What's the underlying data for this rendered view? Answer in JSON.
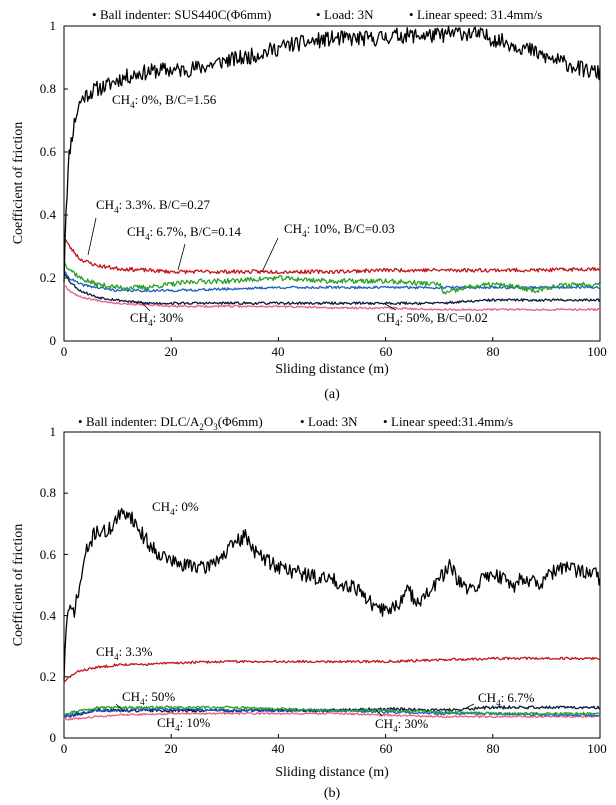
{
  "chart_data": [
    {
      "type": "line",
      "panel_label": "(a)",
      "header_items": [
        {
          "text": "Ball indenter: SUS440C(Φ6mm)"
        },
        {
          "text": "Load: 3N"
        },
        {
          "text": "Linear speed: 31.4mm/s"
        }
      ],
      "xlabel": "Sliding distance (m)",
      "ylabel": "Coefficient of friction",
      "xlim": [
        0,
        100
      ],
      "ylim": [
        0,
        1
      ],
      "x_ticks": [
        "0",
        "20",
        "40",
        "60",
        "80",
        "100"
      ],
      "y_ticks": [
        "0",
        "0.2",
        "0.4",
        "0.6",
        "0.8",
        "1"
      ],
      "series": [
        {
          "name": "CH4: 0%, B/C=1.56",
          "color": "#000000",
          "noise": 0.025,
          "seed": 11,
          "x": [
            0,
            0.3,
            1,
            2,
            3,
            4,
            6,
            8,
            10,
            14,
            18,
            22,
            26,
            30,
            34,
            38,
            42,
            46,
            50,
            54,
            58,
            62,
            66,
            70,
            74,
            78,
            82,
            86,
            90,
            94,
            97,
            100
          ],
          "y": [
            0.2,
            0.4,
            0.6,
            0.7,
            0.76,
            0.78,
            0.8,
            0.81,
            0.83,
            0.85,
            0.86,
            0.86,
            0.87,
            0.89,
            0.9,
            0.92,
            0.94,
            0.95,
            0.96,
            0.96,
            0.96,
            0.97,
            0.97,
            0.97,
            0.98,
            0.97,
            0.95,
            0.93,
            0.9,
            0.88,
            0.86,
            0.85
          ]
        },
        {
          "name": "CH4: 3.3%, B/C=0.27",
          "color": "#c0161c",
          "noise": 0.006,
          "seed": 23,
          "x": [
            0,
            1,
            3,
            6,
            10,
            15,
            20,
            30,
            40,
            50,
            60,
            70,
            80,
            90,
            100
          ],
          "y": [
            0.33,
            0.3,
            0.26,
            0.24,
            0.23,
            0.225,
            0.22,
            0.22,
            0.22,
            0.22,
            0.225,
            0.225,
            0.225,
            0.225,
            0.23
          ]
        },
        {
          "name": "CH4: 6.7%, B/C=0.14",
          "color": "#2ca02c",
          "noise": 0.008,
          "seed": 37,
          "x": [
            0,
            1,
            3,
            6,
            10,
            15,
            20,
            25,
            30,
            40,
            50,
            60,
            70,
            71,
            75,
            80,
            85,
            88,
            90,
            95,
            100
          ],
          "y": [
            0.25,
            0.23,
            0.2,
            0.18,
            0.17,
            0.17,
            0.18,
            0.19,
            0.19,
            0.2,
            0.19,
            0.19,
            0.18,
            0.15,
            0.17,
            0.18,
            0.17,
            0.16,
            0.17,
            0.18,
            0.18
          ]
        },
        {
          "name": "CH4: 10%, B/C=0.03",
          "color": "#1f5fc0",
          "noise": 0.004,
          "seed": 41,
          "x": [
            0,
            1,
            3,
            6,
            10,
            20,
            30,
            40,
            50,
            60,
            70,
            80,
            90,
            100
          ],
          "y": [
            0.22,
            0.2,
            0.18,
            0.17,
            0.16,
            0.16,
            0.165,
            0.17,
            0.17,
            0.17,
            0.17,
            0.17,
            0.17,
            0.17
          ]
        },
        {
          "name": "CH4: 30%",
          "color": "#0b1a3a",
          "noise": 0.004,
          "seed": 53,
          "x": [
            0,
            1,
            3,
            6,
            10,
            15,
            20,
            30,
            40,
            50,
            60,
            70,
            80,
            90,
            100
          ],
          "y": [
            0.22,
            0.19,
            0.16,
            0.14,
            0.13,
            0.12,
            0.12,
            0.12,
            0.12,
            0.12,
            0.12,
            0.12,
            0.13,
            0.13,
            0.13
          ]
        },
        {
          "name": "CH4: 50%, B/C=0.02",
          "color": "#e8608a",
          "noise": 0.003,
          "seed": 67,
          "x": [
            0,
            1,
            3,
            6,
            10,
            15,
            20,
            30,
            40,
            50,
            60,
            70,
            80,
            90,
            100
          ],
          "y": [
            0.18,
            0.16,
            0.14,
            0.13,
            0.12,
            0.115,
            0.11,
            0.11,
            0.11,
            0.105,
            0.105,
            0.1,
            0.1,
            0.1,
            0.1
          ]
        }
      ],
      "annotations": [
        {
          "pre": "CH",
          "sub": "4",
          "post": ": 0%, B/C=1.56"
        },
        {
          "pre": "CH",
          "sub": "4",
          "post": ": 3.3%. B/C=0.27"
        },
        {
          "pre": "CH",
          "sub": "4",
          "post": ": 6.7%, B/C=0.14"
        },
        {
          "pre": "CH",
          "sub": "4",
          "post": ": 10%, B/C=0.03"
        },
        {
          "pre": "CH",
          "sub": "4",
          "post": ": 30%"
        },
        {
          "pre": "CH",
          "sub": "4",
          "post": ": 50%, B/C=0.02"
        }
      ]
    },
    {
      "type": "line",
      "panel_label": "(b)",
      "header_items": [
        {
          "pre": "Ball indenter: DLC/A",
          "sub1": "2",
          "mid": "O",
          "sub2": "3",
          "post": "(Φ6mm)"
        },
        {
          "text": "Load: 3N"
        },
        {
          "text": "Linear speed:31.4mm/s"
        }
      ],
      "xlabel": "Sliding distance (m)",
      "ylabel": "Coefficient of friction",
      "xlim": [
        0,
        100
      ],
      "ylim": [
        0,
        1
      ],
      "x_ticks": [
        "0",
        "20",
        "40",
        "60",
        "80",
        "100"
      ],
      "y_ticks": [
        "0",
        "0.2",
        "0.4",
        "0.6",
        "0.8",
        "1"
      ],
      "series": [
        {
          "name": "CH4: 0%",
          "color": "#000000",
          "noise": 0.025,
          "seed": 71,
          "x": [
            0,
            0.5,
            1,
            2,
            3,
            4,
            5,
            6,
            8,
            10,
            12,
            14,
            16,
            18,
            20,
            22,
            24,
            26,
            28,
            30,
            32,
            34,
            36,
            38,
            40,
            42,
            44,
            46,
            48,
            50,
            52,
            54,
            56,
            58,
            60,
            62,
            64,
            66,
            68,
            70,
            72,
            74,
            76,
            78,
            80,
            82,
            84,
            86,
            88,
            90,
            92,
            94,
            96,
            98,
            100
          ],
          "y": [
            0.2,
            0.4,
            0.41,
            0.42,
            0.5,
            0.6,
            0.64,
            0.68,
            0.67,
            0.72,
            0.74,
            0.68,
            0.63,
            0.6,
            0.58,
            0.56,
            0.57,
            0.55,
            0.58,
            0.6,
            0.64,
            0.66,
            0.6,
            0.58,
            0.56,
            0.55,
            0.54,
            0.53,
            0.52,
            0.52,
            0.5,
            0.5,
            0.47,
            0.42,
            0.42,
            0.43,
            0.48,
            0.45,
            0.47,
            0.52,
            0.56,
            0.5,
            0.48,
            0.52,
            0.54,
            0.52,
            0.5,
            0.53,
            0.5,
            0.52,
            0.55,
            0.56,
            0.54,
            0.55,
            0.52
          ]
        },
        {
          "name": "CH4: 3.3%",
          "color": "#c0161c",
          "noise": 0.004,
          "seed": 83,
          "x": [
            0,
            1,
            3,
            6,
            10,
            15,
            20,
            30,
            40,
            50,
            60,
            70,
            80,
            90,
            100
          ],
          "y": [
            0.18,
            0.2,
            0.22,
            0.23,
            0.24,
            0.24,
            0.245,
            0.25,
            0.25,
            0.25,
            0.25,
            0.255,
            0.26,
            0.26,
            0.26
          ]
        },
        {
          "name": "CH4: 50%",
          "color": "#2ca02c",
          "noise": 0.004,
          "seed": 97,
          "x": [
            0,
            3,
            6,
            10,
            20,
            30,
            40,
            50,
            60,
            70,
            80,
            90,
            100
          ],
          "y": [
            0.08,
            0.09,
            0.1,
            0.1,
            0.1,
            0.1,
            0.095,
            0.09,
            0.09,
            0.085,
            0.08,
            0.08,
            0.08
          ]
        },
        {
          "name": "CH4: 10%",
          "color": "#1f5fc0",
          "noise": 0.004,
          "seed": 101,
          "x": [
            0,
            3,
            6,
            10,
            20,
            30,
            40,
            50,
            60,
            70,
            80,
            90,
            100
          ],
          "y": [
            0.07,
            0.08,
            0.09,
            0.09,
            0.095,
            0.09,
            0.09,
            0.09,
            0.085,
            0.08,
            0.08,
            0.075,
            0.075
          ]
        },
        {
          "name": "CH4: 6.7%",
          "color": "#0b1a3a",
          "noise": 0.005,
          "seed": 113,
          "x": [
            0,
            3,
            6,
            10,
            20,
            30,
            40,
            50,
            60,
            70,
            80,
            90,
            100
          ],
          "y": [
            0.07,
            0.08,
            0.09,
            0.09,
            0.09,
            0.09,
            0.09,
            0.09,
            0.095,
            0.09,
            0.1,
            0.1,
            0.1
          ]
        },
        {
          "name": "CH4: 30%",
          "color": "#e8608a",
          "noise": 0.003,
          "seed": 127,
          "x": [
            0,
            3,
            6,
            10,
            20,
            30,
            40,
            50,
            60,
            70,
            80,
            90,
            100
          ],
          "y": [
            0.06,
            0.065,
            0.07,
            0.075,
            0.08,
            0.08,
            0.08,
            0.08,
            0.075,
            0.07,
            0.07,
            0.07,
            0.07
          ]
        }
      ],
      "annotations": [
        {
          "pre": "CH",
          "sub": "4",
          "post": ": 0%"
        },
        {
          "pre": "CH",
          "sub": "4",
          "post": ": 3.3%"
        },
        {
          "pre": "CH",
          "sub": "4",
          "post": ": 50%"
        },
        {
          "pre": "CH",
          "sub": "4",
          "post": ": 10%"
        },
        {
          "pre": "CH",
          "sub": "4",
          "post": ": 30%"
        },
        {
          "pre": "CH",
          "sub": "4",
          "post": ": 6.7%"
        }
      ]
    }
  ]
}
